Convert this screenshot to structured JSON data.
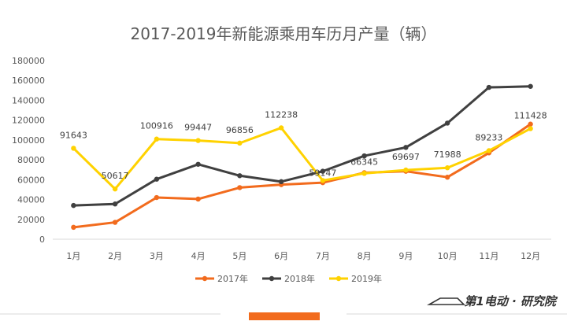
{
  "chart_data": {
    "type": "line",
    "title": "2017-2019年新能源乘用车历月产量（辆）",
    "categories": [
      "1月",
      "2月",
      "3月",
      "4月",
      "5月",
      "6月",
      "7月",
      "8月",
      "9月",
      "10月",
      "11月",
      "12月"
    ],
    "ylim": [
      0,
      180000
    ],
    "yticks": [
      "0",
      "20000",
      "40000",
      "60000",
      "80000",
      "100000",
      "120000",
      "140000",
      "160000",
      "180000"
    ],
    "grid": false,
    "legend_position": "bottom",
    "series": [
      {
        "name": "2017年",
        "color": "#F26B1D",
        "values": [
          12000,
          17000,
          42000,
          40500,
          52000,
          55000,
          57000,
          67000,
          68500,
          62500,
          87000,
          116000
        ]
      },
      {
        "name": "2018年",
        "color": "#404040",
        "values": [
          34000,
          35500,
          60500,
          75500,
          64000,
          58000,
          68500,
          84000,
          92500,
          117000,
          153000,
          154000
        ]
      },
      {
        "name": "2019年",
        "color": "#FFD200",
        "values": [
          91643,
          50617,
          100916,
          99447,
          96856,
          112238,
          59147,
          66345,
          69697,
          71988,
          89233,
          111428
        ]
      }
    ],
    "data_labels": {
      "series": "2019年",
      "values": [
        "91643",
        "50617",
        "100916",
        "99447",
        "96856",
        "112238",
        "59147",
        "66345",
        "69697",
        "71988",
        "89233",
        "111428"
      ]
    }
  },
  "brand": {
    "name": "第1电动 · 研究院",
    "accent_color": "#F26B1D"
  }
}
